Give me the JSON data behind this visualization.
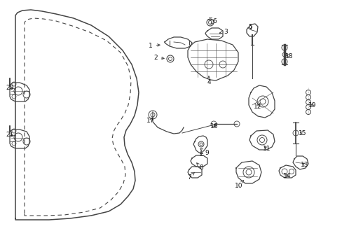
{
  "bg_color": "#ffffff",
  "line_color": "#444444",
  "label_color": "#111111",
  "figsize": [
    4.89,
    3.6
  ],
  "dpi": 100
}
